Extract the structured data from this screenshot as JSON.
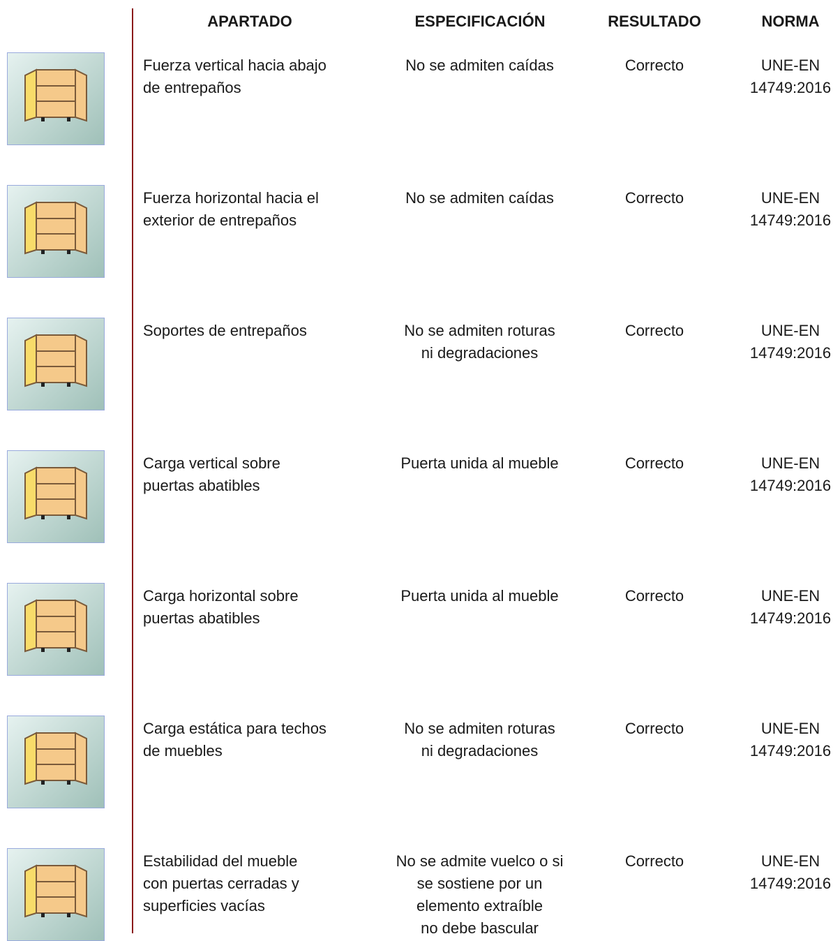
{
  "header": {
    "columns": [
      "APARTADO",
      "ESPECIFICACIÓN",
      "RESULTADO",
      "NORMA"
    ]
  },
  "table": {
    "rows": [
      {
        "apartado": [
          "Fuerza vertical hacia abajo",
          "de entrepaños"
        ],
        "especificacion": [
          "No se admiten caídas"
        ],
        "resultado": "Correcto",
        "norma": [
          "UNE-EN",
          "14749:2016"
        ]
      },
      {
        "apartado": [
          "Fuerza horizontal hacia el",
          "exterior de entrepaños"
        ],
        "especificacion": [
          "No se admiten caídas"
        ],
        "resultado": "Correcto",
        "norma": [
          "UNE-EN",
          "14749:2016"
        ]
      },
      {
        "apartado": [
          "Soportes de entrepaños"
        ],
        "especificacion": [
          "No se admiten roturas",
          "ni degradaciones"
        ],
        "resultado": "Correcto",
        "norma": [
          "UNE-EN",
          "14749:2016"
        ]
      },
      {
        "apartado": [
          "Carga vertical sobre",
          "puertas abatibles"
        ],
        "especificacion": [
          "Puerta unida al mueble"
        ],
        "resultado": "Correcto",
        "norma": [
          "UNE-EN",
          "14749:2016"
        ]
      },
      {
        "apartado": [
          "Carga horizontal sobre",
          "puertas abatibles"
        ],
        "especificacion": [
          "Puerta unida al mueble"
        ],
        "resultado": "Correcto",
        "norma": [
          "UNE-EN",
          "14749:2016"
        ]
      },
      {
        "apartado": [
          "Carga estática para techos",
          "de muebles"
        ],
        "especificacion": [
          "No se admiten roturas",
          "ni degradaciones"
        ],
        "resultado": "Correcto",
        "norma": [
          "UNE-EN",
          "14749:2016"
        ]
      },
      {
        "apartado": [
          "Estabilidad del mueble",
          "con puertas cerradas y",
          "superficies vacías"
        ],
        "especificacion": [
          "No se admite vuelco o si",
          "se sostiene por un",
          "elemento extraíble",
          "no debe bascular"
        ],
        "resultado": "Correcto",
        "norma": [
          "UNE-EN",
          "14749:2016"
        ]
      }
    ]
  }
}
